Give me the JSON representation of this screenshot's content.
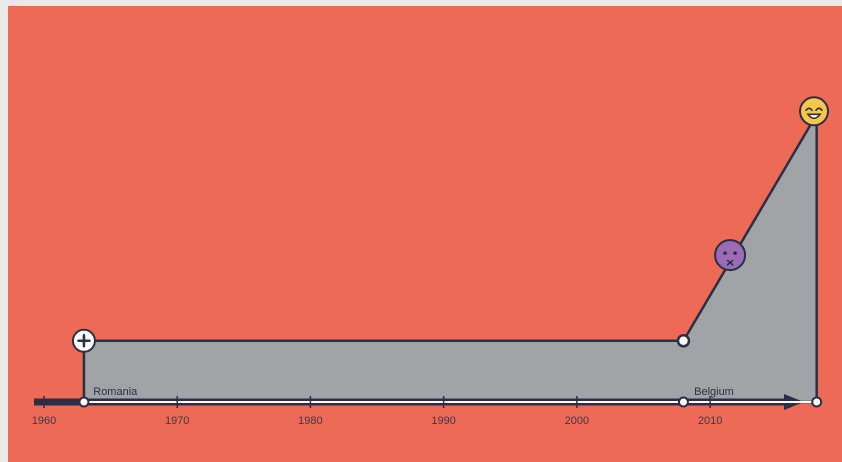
{
  "chart_data": {
    "type": "area",
    "title": "",
    "xlabel": "",
    "ylabel": "",
    "xlim": [
      1957.3,
      2019.9
    ],
    "ylim": [
      0,
      5
    ],
    "x_ticks": [
      1960,
      1970,
      1980,
      1990,
      2000,
      2010
    ],
    "x_tick_labels": [
      "1960",
      "1970",
      "1980",
      "1990",
      "2000",
      "2010"
    ],
    "grid": false,
    "area_points": [
      {
        "x": 1963.0,
        "y": 1.0
      },
      {
        "x": 2008.0,
        "y": 1.0
      },
      {
        "x": 2018.0,
        "y": 4.7
      }
    ],
    "markers": [
      {
        "x": 1963.0,
        "y": 1.0,
        "icon": "plus-icon"
      },
      {
        "x": 2011.5,
        "y": 2.4,
        "icon": "sick-face-icon",
        "color": "#9b6bb5"
      },
      {
        "x": 2017.8,
        "y": 4.75,
        "icon": "happy-face-icon",
        "color": "#f5c84c"
      }
    ],
    "timeline_points": [
      1963.0,
      2008.0,
      2018.0
    ],
    "place_labels": [
      {
        "x": 1963.7,
        "text": "Romania"
      },
      {
        "x": 2008.8,
        "text": "Belgium"
      }
    ],
    "colors": {
      "background": "#ec6a56",
      "area_fill": "#a1a4a6",
      "stroke": "#2b2f45",
      "marker_fill": "#ffffff"
    }
  }
}
